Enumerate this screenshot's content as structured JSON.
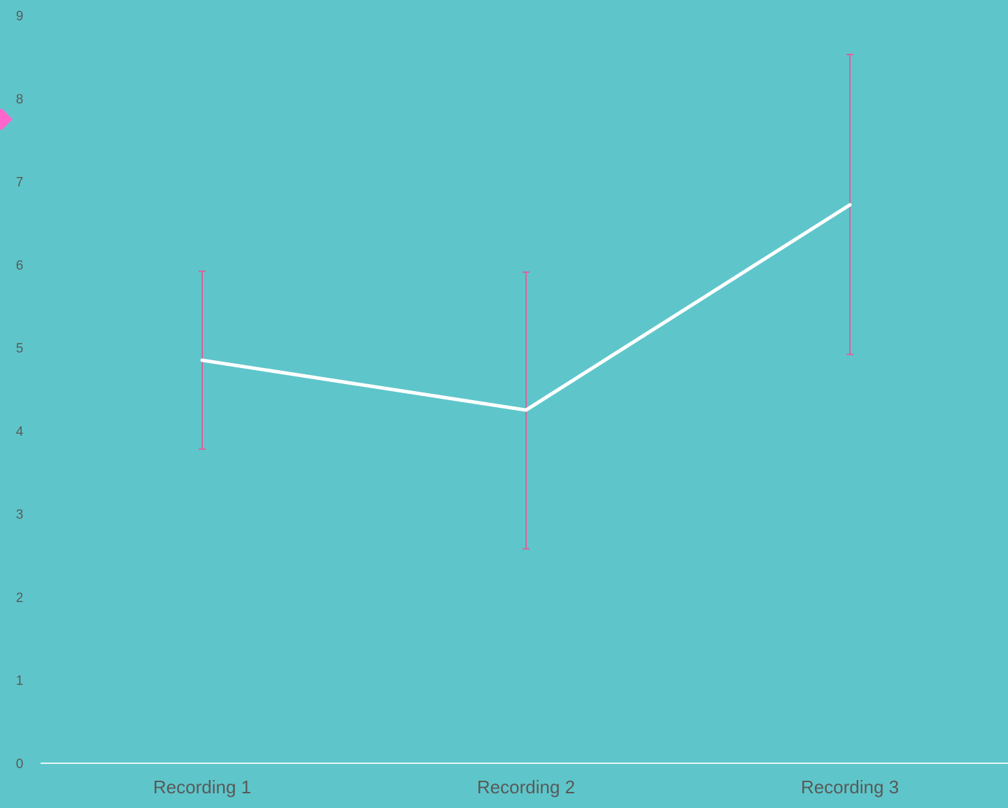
{
  "chart_data": {
    "type": "line",
    "title": "",
    "xlabel": "",
    "ylabel": "",
    "categories": [
      "Recording 1",
      "Recording 2",
      "Recording 3"
    ],
    "series": [
      {
        "values": [
          4.85,
          4.25,
          6.72
        ],
        "error_low": [
          3.78,
          2.58,
          4.92
        ],
        "error_high": [
          5.92,
          5.91,
          8.53
        ]
      }
    ],
    "ylim": [
      0,
      9
    ],
    "yticks": [
      0,
      1,
      2,
      3,
      4,
      5,
      6,
      7,
      8,
      9
    ],
    "grid": false,
    "legend": "none",
    "colors": {
      "background": "#5EC6CA",
      "line": "#FFFFFF",
      "error_bar": "#E0609A",
      "marker": "#FF66CC",
      "axis": "#E8F4F4",
      "tick_text": "#595959"
    },
    "annotations": [
      {
        "kind": "marker",
        "shape": "diamond",
        "y": 7.75
      }
    ]
  }
}
